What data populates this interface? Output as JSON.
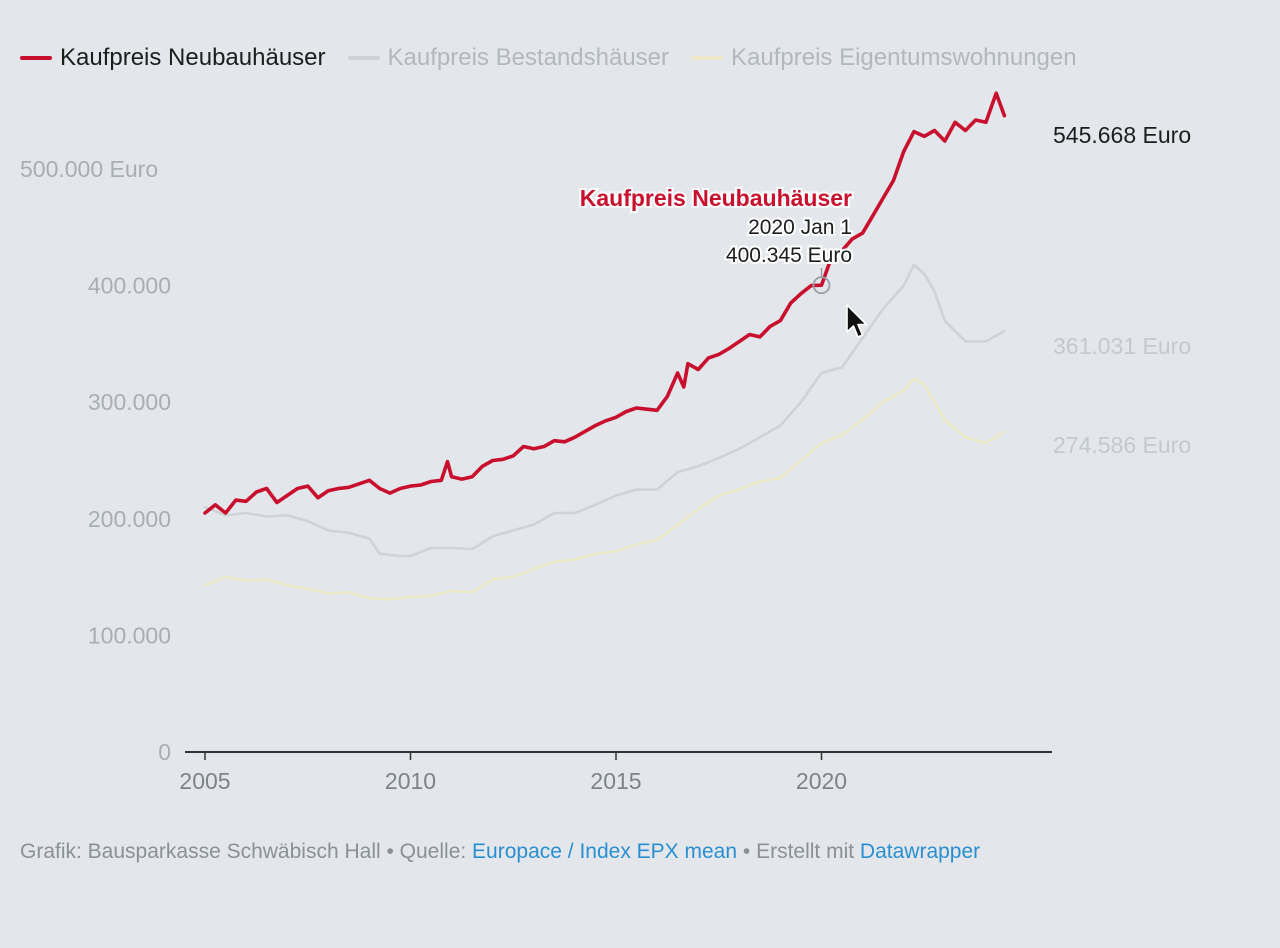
{
  "legend": [
    {
      "label": "Kaufpreis Neubauhäuser",
      "color": "#c8102e",
      "text_color": "#1d1d1d"
    },
    {
      "label": "Kaufpreis Bestandshäuser",
      "color": "#cfd3d7",
      "text_color": "#b3b8bd"
    },
    {
      "label": "Kaufpreis Eigentumswohnungen",
      "color": "#ece9c8",
      "text_color": "#b3b8bd"
    }
  ],
  "tooltip": {
    "series": "Kaufpreis Neubauhäuser",
    "date": "2020 Jan 1",
    "value": "400.345 Euro"
  },
  "footer": {
    "credit": "Grafik: Bausparkasse Schwäbisch Hall • Quelle: ",
    "source_link": "Europace / Index EPX mean",
    "made_with": " • Erstellt mit ",
    "tool_link": "Datawrapper"
  },
  "chart_data": {
    "type": "line",
    "xlim": [
      2005,
      2025
    ],
    "ylim": [
      0,
      560000
    ],
    "x_ticks": [
      {
        "value": 2005,
        "label": "2005"
      },
      {
        "value": 2010,
        "label": "2010"
      },
      {
        "value": 2015,
        "label": "2015"
      },
      {
        "value": 2020,
        "label": "2020"
      }
    ],
    "y_ticks": [
      {
        "value": 0,
        "label": "0"
      },
      {
        "value": 100000,
        "label": "100.000"
      },
      {
        "value": 200000,
        "label": "200.000"
      },
      {
        "value": 300000,
        "label": "300.000"
      },
      {
        "value": 400000,
        "label": "400.000"
      },
      {
        "value": 500000,
        "label": "500.000 Euro"
      }
    ],
    "series": [
      {
        "name": "Kaufpreis Neubauhäuser",
        "color": "#c8102e",
        "end_label": "545.668 Euro",
        "points": [
          [
            2005.0,
            205000
          ],
          [
            2005.25,
            212000
          ],
          [
            2005.5,
            205000
          ],
          [
            2005.75,
            216000
          ],
          [
            2006.0,
            215000
          ],
          [
            2006.25,
            223000
          ],
          [
            2006.5,
            226000
          ],
          [
            2006.75,
            214000
          ],
          [
            2007.0,
            220000
          ],
          [
            2007.25,
            226000
          ],
          [
            2007.5,
            228000
          ],
          [
            2007.75,
            218000
          ],
          [
            2008.0,
            224000
          ],
          [
            2008.25,
            226000
          ],
          [
            2008.5,
            227000
          ],
          [
            2008.75,
            230000
          ],
          [
            2009.0,
            233000
          ],
          [
            2009.25,
            226000
          ],
          [
            2009.5,
            222000
          ],
          [
            2009.75,
            226000
          ],
          [
            2010.0,
            228000
          ],
          [
            2010.25,
            229000
          ],
          [
            2010.5,
            232000
          ],
          [
            2010.75,
            233000
          ],
          [
            2010.9,
            249000
          ],
          [
            2011.0,
            236000
          ],
          [
            2011.25,
            234000
          ],
          [
            2011.5,
            236000
          ],
          [
            2011.75,
            245000
          ],
          [
            2012.0,
            250000
          ],
          [
            2012.25,
            251000
          ],
          [
            2012.5,
            254000
          ],
          [
            2012.75,
            262000
          ],
          [
            2013.0,
            260000
          ],
          [
            2013.25,
            262000
          ],
          [
            2013.5,
            267000
          ],
          [
            2013.75,
            266000
          ],
          [
            2014.0,
            270000
          ],
          [
            2014.25,
            275000
          ],
          [
            2014.5,
            280000
          ],
          [
            2014.75,
            284000
          ],
          [
            2015.0,
            287000
          ],
          [
            2015.25,
            292000
          ],
          [
            2015.5,
            295000
          ],
          [
            2015.75,
            294000
          ],
          [
            2016.0,
            293000
          ],
          [
            2016.25,
            305000
          ],
          [
            2016.5,
            325000
          ],
          [
            2016.65,
            313000
          ],
          [
            2016.75,
            333000
          ],
          [
            2017.0,
            328000
          ],
          [
            2017.25,
            338000
          ],
          [
            2017.5,
            341000
          ],
          [
            2017.75,
            346000
          ],
          [
            2018.0,
            352000
          ],
          [
            2018.25,
            358000
          ],
          [
            2018.5,
            356000
          ],
          [
            2018.75,
            365000
          ],
          [
            2019.0,
            370000
          ],
          [
            2019.25,
            385000
          ],
          [
            2019.5,
            393000
          ],
          [
            2019.75,
            400000
          ],
          [
            2020.0,
            400345
          ],
          [
            2020.25,
            425000
          ],
          [
            2020.5,
            430000
          ],
          [
            2020.75,
            440000
          ],
          [
            2021.0,
            445000
          ],
          [
            2021.25,
            460000
          ],
          [
            2021.5,
            475000
          ],
          [
            2021.75,
            490000
          ],
          [
            2022.0,
            515000
          ],
          [
            2022.25,
            532000
          ],
          [
            2022.5,
            528000
          ],
          [
            2022.75,
            533000
          ],
          [
            2023.0,
            524000
          ],
          [
            2023.25,
            540000
          ],
          [
            2023.5,
            533000
          ],
          [
            2023.75,
            542000
          ],
          [
            2024.0,
            540000
          ],
          [
            2024.25,
            565000
          ],
          [
            2024.45,
            545668
          ]
        ]
      },
      {
        "name": "Kaufpreis Bestandshäuser",
        "color": "#cfd3d7",
        "end_label": "361.031 Euro",
        "points": [
          [
            2005.0,
            210000
          ],
          [
            2005.5,
            203000
          ],
          [
            2006.0,
            205000
          ],
          [
            2006.5,
            202000
          ],
          [
            2007.0,
            203000
          ],
          [
            2007.5,
            198000
          ],
          [
            2008.0,
            190000
          ],
          [
            2008.5,
            188000
          ],
          [
            2009.0,
            183000
          ],
          [
            2009.25,
            170000
          ],
          [
            2009.75,
            168000
          ],
          [
            2010.0,
            168000
          ],
          [
            2010.5,
            175000
          ],
          [
            2011.0,
            175000
          ],
          [
            2011.5,
            174000
          ],
          [
            2012.0,
            185000
          ],
          [
            2012.5,
            190000
          ],
          [
            2013.0,
            195000
          ],
          [
            2013.5,
            205000
          ],
          [
            2014.0,
            205000
          ],
          [
            2014.5,
            212000
          ],
          [
            2015.0,
            220000
          ],
          [
            2015.5,
            225000
          ],
          [
            2016.0,
            225000
          ],
          [
            2016.5,
            240000
          ],
          [
            2017.0,
            245000
          ],
          [
            2017.5,
            252000
          ],
          [
            2018.0,
            260000
          ],
          [
            2018.5,
            270000
          ],
          [
            2019.0,
            280000
          ],
          [
            2019.5,
            300000
          ],
          [
            2020.0,
            325000
          ],
          [
            2020.5,
            330000
          ],
          [
            2021.0,
            355000
          ],
          [
            2021.5,
            380000
          ],
          [
            2022.0,
            400000
          ],
          [
            2022.25,
            418000
          ],
          [
            2022.5,
            410000
          ],
          [
            2022.75,
            395000
          ],
          [
            2023.0,
            370000
          ],
          [
            2023.5,
            352000
          ],
          [
            2024.0,
            352000
          ],
          [
            2024.45,
            361031
          ]
        ]
      },
      {
        "name": "Kaufpreis Eigentumswohnungen",
        "color": "#ece9c8",
        "end_label": "274.586 Euro",
        "points": [
          [
            2005.0,
            143000
          ],
          [
            2005.5,
            150000
          ],
          [
            2006.0,
            147000
          ],
          [
            2006.5,
            148000
          ],
          [
            2007.0,
            143000
          ],
          [
            2007.5,
            140000
          ],
          [
            2008.0,
            136000
          ],
          [
            2008.5,
            137000
          ],
          [
            2009.0,
            132000
          ],
          [
            2009.5,
            131000
          ],
          [
            2010.0,
            133000
          ],
          [
            2010.5,
            134000
          ],
          [
            2011.0,
            138000
          ],
          [
            2011.5,
            137000
          ],
          [
            2012.0,
            148000
          ],
          [
            2012.5,
            150000
          ],
          [
            2013.0,
            157000
          ],
          [
            2013.5,
            163000
          ],
          [
            2014.0,
            165000
          ],
          [
            2014.5,
            170000
          ],
          [
            2015.0,
            172000
          ],
          [
            2015.5,
            178000
          ],
          [
            2016.0,
            182000
          ],
          [
            2016.5,
            195000
          ],
          [
            2017.0,
            208000
          ],
          [
            2017.5,
            220000
          ],
          [
            2018.0,
            225000
          ],
          [
            2018.5,
            232000
          ],
          [
            2019.0,
            235000
          ],
          [
            2019.5,
            250000
          ],
          [
            2020.0,
            265000
          ],
          [
            2020.5,
            272000
          ],
          [
            2021.0,
            285000
          ],
          [
            2021.5,
            300000
          ],
          [
            2022.0,
            310000
          ],
          [
            2022.25,
            320000
          ],
          [
            2022.5,
            315000
          ],
          [
            2022.75,
            300000
          ],
          [
            2023.0,
            285000
          ],
          [
            2023.5,
            270000
          ],
          [
            2024.0,
            265000
          ],
          [
            2024.45,
            274586
          ]
        ]
      }
    ],
    "highlight": {
      "series": "Kaufpreis Neubauhäuser",
      "x": 2020.0,
      "y": 400345
    }
  }
}
